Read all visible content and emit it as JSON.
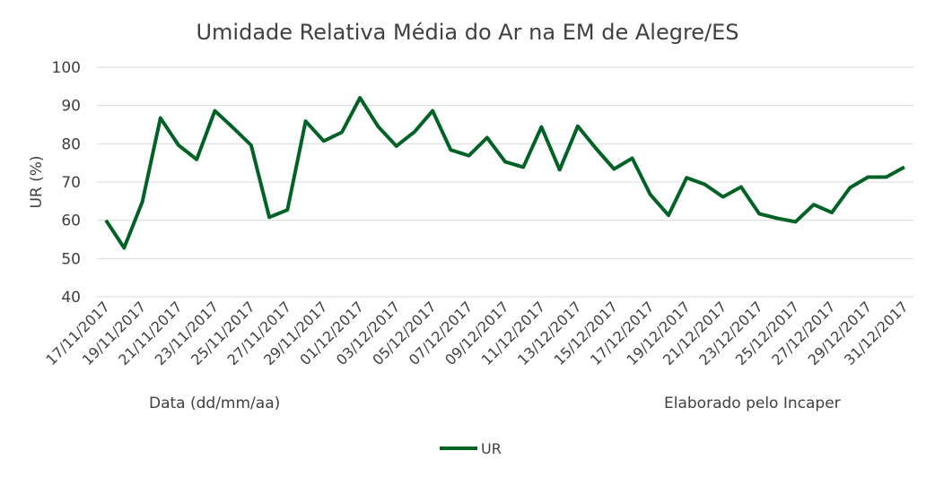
{
  "chart_data": {
    "type": "line",
    "title": "Umidade Relativa Média do Ar na EM de Alegre/ES",
    "xlabel": "Data (dd/mm/aa)",
    "ylabel": "UR (%)",
    "note": "Elaborado pelo Incaper",
    "ylim": [
      40,
      100
    ],
    "yticks": [
      40,
      50,
      60,
      70,
      80,
      90,
      100
    ],
    "grid": true,
    "legend_position": "bottom",
    "line_color": "#006325",
    "x": [
      "17/11/2017",
      "18/11/2017",
      "19/11/2017",
      "20/11/2017",
      "21/11/2017",
      "22/11/2017",
      "23/11/2017",
      "24/11/2017",
      "25/11/2017",
      "26/11/2017",
      "27/11/2017",
      "28/11/2017",
      "29/11/2017",
      "30/11/2017",
      "01/12/2017",
      "02/12/2017",
      "03/12/2017",
      "04/12/2017",
      "05/12/2017",
      "06/12/2017",
      "07/12/2017",
      "08/12/2017",
      "09/12/2017",
      "10/12/2017",
      "11/12/2017",
      "12/12/2017",
      "13/12/2017",
      "14/12/2017",
      "15/12/2017",
      "16/12/2017",
      "17/12/2017",
      "18/12/2017",
      "19/12/2017",
      "20/12/2017",
      "21/12/2017",
      "22/12/2017",
      "23/12/2017",
      "24/12/2017",
      "25/12/2017",
      "26/12/2017",
      "27/12/2017",
      "28/12/2017",
      "29/12/2017",
      "30/12/2017",
      "31/12/2017"
    ],
    "series": [
      {
        "name": "UR",
        "values": [
          60,
          52.8,
          64.8,
          86.7,
          79.6,
          75.9,
          88.6,
          84.2,
          79.6,
          60.8,
          62.7,
          85.9,
          80.7,
          83,
          92,
          84.5,
          79.4,
          83.1,
          88.6,
          78.4,
          76.9,
          81.6,
          75.3,
          73.9,
          84.4,
          73.2,
          84.6,
          78.8,
          73.4,
          76.2,
          66.7,
          61.3,
          71.1,
          69.4,
          66.1,
          68.7,
          61.7,
          60.5,
          59.6,
          64.1,
          62,
          68.5,
          71.3,
          71.3,
          73.9
        ]
      }
    ]
  }
}
